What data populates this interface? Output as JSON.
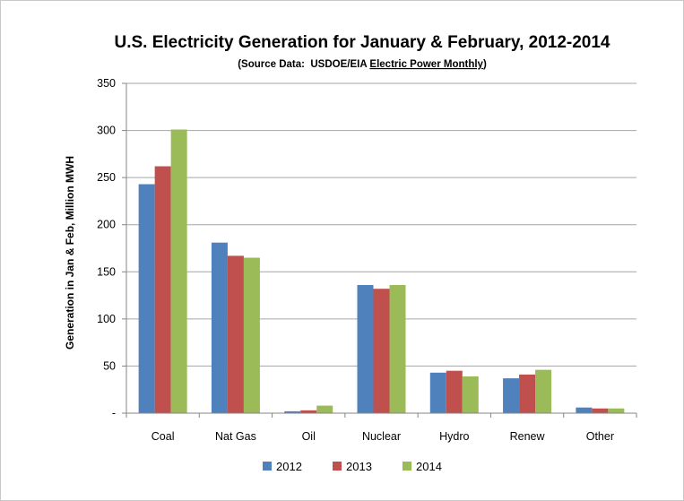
{
  "chart_data": {
    "type": "bar",
    "title": "U.S. Electricity Generation for January & February, 2012-2014",
    "subtitle_prefix": "(Source Data:  USDOE/EIA ",
    "subtitle_underlined": "Electric Power Monthly",
    "subtitle_suffix": ")",
    "xlabel": "",
    "ylabel": "Generation in Jan & Feb, Million MWH",
    "ylim": [
      0,
      350
    ],
    "yticks": [
      0,
      50,
      100,
      150,
      200,
      250,
      300,
      350
    ],
    "ytick_labels": [
      "-",
      "50",
      "100",
      "150",
      "200",
      "250",
      "300",
      "350"
    ],
    "grid": true,
    "legend_position": "bottom",
    "categories": [
      "Coal",
      "Nat Gas",
      "Oil",
      "Nuclear",
      "Hydro",
      "Renew",
      "Other"
    ],
    "series": [
      {
        "name": "2012",
        "color": "#4f81bd",
        "values": [
          243,
          181,
          2,
          136,
          43,
          37,
          6
        ]
      },
      {
        "name": "2013",
        "color": "#c0504d",
        "values": [
          262,
          167,
          3,
          132,
          45,
          41,
          5
        ]
      },
      {
        "name": "2014",
        "color": "#9bbb59",
        "values": [
          301,
          165,
          8,
          136,
          39,
          46,
          5
        ]
      }
    ]
  }
}
